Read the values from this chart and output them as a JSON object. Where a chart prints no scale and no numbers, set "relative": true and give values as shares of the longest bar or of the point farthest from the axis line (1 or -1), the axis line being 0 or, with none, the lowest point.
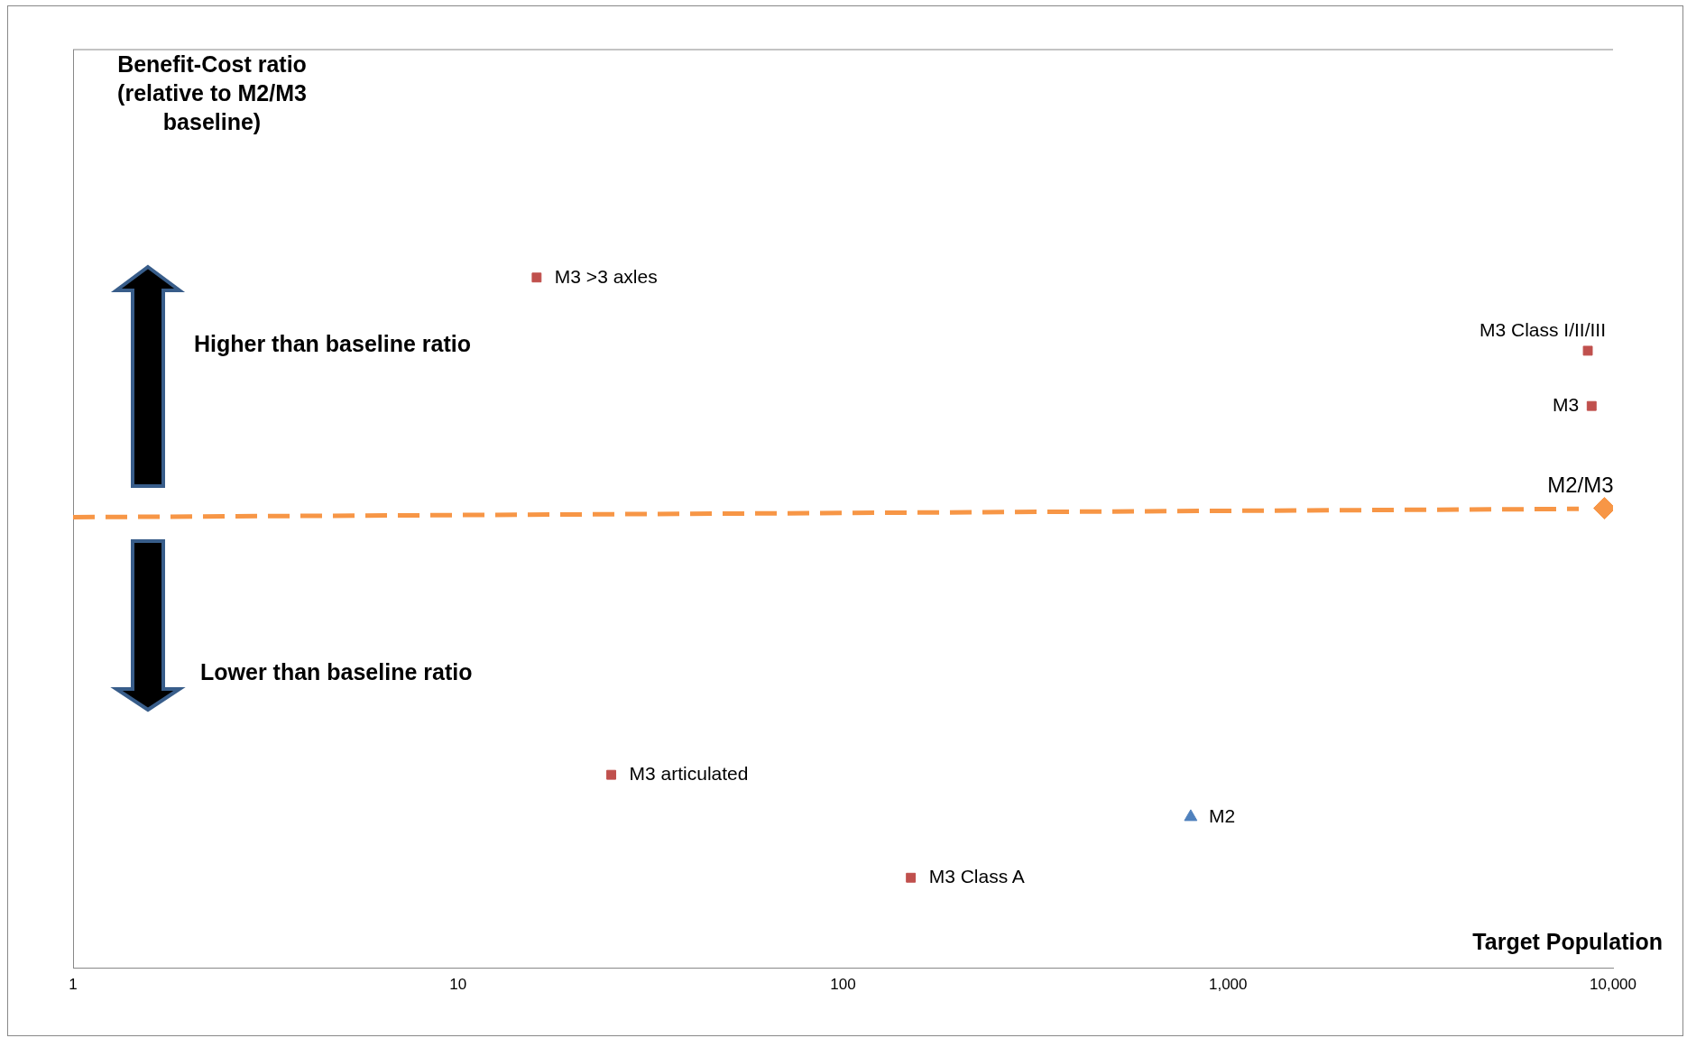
{
  "chart_data": {
    "type": "scatter",
    "relative": true,
    "xlabel": "Target Population",
    "log": "x",
    "xlim": [
      1,
      10000
    ],
    "xticks": [
      1,
      10,
      100,
      {
        "value": 1000,
        "label": "1,000"
      },
      {
        "value": 10000,
        "label": "10,000"
      }
    ],
    "grid": false,
    "legend": false,
    "annotations": [
      "Benefit-Cost ratio (relative to M2/M3 baseline)",
      "Higher than baseline ratio",
      "Lower than baseline ratio"
    ],
    "series": [
      {
        "type": "line",
        "color": "#f79646",
        "line_style": "dashed",
        "marker": "none",
        "x": [
          1,
          8150
        ],
        "values": [
          0.653,
          0.665
        ]
      },
      {
        "name": "M3 >3 axles",
        "color": "#c0504d",
        "marker": "square",
        "x": [
          16
        ],
        "values": [
          1
        ]
      },
      {
        "name": "M3 Class I/II/III",
        "color": "#c0504d",
        "marker": "square",
        "x": [
          8600
        ],
        "values": [
          0.894
        ]
      },
      {
        "name": "M3",
        "color": "#c0504d",
        "marker": "square",
        "x": [
          8800
        ],
        "values": [
          0.814
        ]
      },
      {
        "name": "M2/M3",
        "color": "#f79646",
        "marker": "diamond",
        "x": [
          9500
        ],
        "values": [
          0.666
        ]
      },
      {
        "name": "M3 articulated",
        "color": "#c0504d",
        "marker": "square",
        "x": [
          25
        ],
        "values": [
          0.28
        ]
      },
      {
        "name": "M2",
        "color": "#4f81bd",
        "marker": "triangle",
        "x": [
          800
        ],
        "values": [
          0.219
        ]
      },
      {
        "name": "M3 Class A",
        "color": "#c0504d",
        "marker": "square",
        "x": [
          150
        ],
        "values": [
          0.131
        ]
      }
    ]
  }
}
